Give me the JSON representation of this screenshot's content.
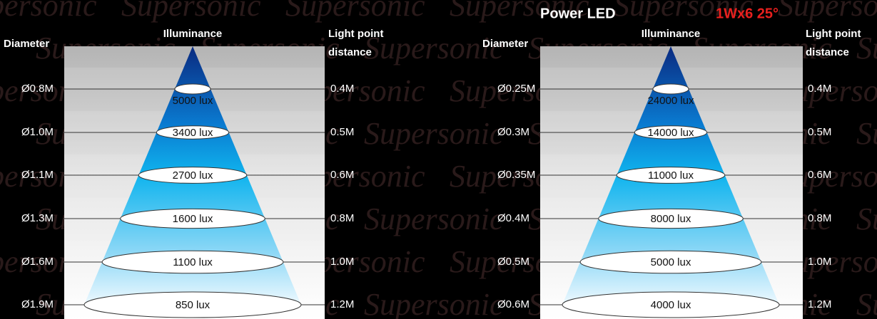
{
  "watermark": "Supersonic",
  "title": "Power LED",
  "spec": "1Wx6  25°",
  "panels": [
    {
      "headers": {
        "diameter": "Diameter",
        "illuminance": "Illuminance",
        "distance_line1": "Light point",
        "distance_line2": "distance"
      },
      "rows": [
        {
          "diameter": "Ø0.8M",
          "illuminance": "5000 lux",
          "distance": "0.4M"
        },
        {
          "diameter": "Ø1.0M",
          "illuminance": "3400 lux",
          "distance": "0.5M"
        },
        {
          "diameter": "Ø1.1M",
          "illuminance": "2700 lux",
          "distance": "0.6M"
        },
        {
          "diameter": "Ø1.3M",
          "illuminance": "1600 lux",
          "distance": "0.8M"
        },
        {
          "diameter": "Ø1.6M",
          "illuminance": "1100 lux",
          "distance": "1.0M"
        },
        {
          "diameter": "Ø1.9M",
          "illuminance": "850 lux",
          "distance": "1.2M"
        }
      ]
    },
    {
      "headers": {
        "diameter": "Diameter",
        "illuminance": "Illuminance",
        "distance_line1": "Light point",
        "distance_line2": "distance"
      },
      "rows": [
        {
          "diameter": "Ø0.25M",
          "illuminance": "24000 lux",
          "distance": "0.4M"
        },
        {
          "diameter": "Ø0.3M",
          "illuminance": "14000 lux",
          "distance": "0.5M"
        },
        {
          "diameter": "Ø0.35M",
          "illuminance": "11000 lux",
          "distance": "0.6M"
        },
        {
          "diameter": "Ø0.4M",
          "illuminance": "8000 lux",
          "distance": "0.8M"
        },
        {
          "diameter": "Ø0.5M",
          "illuminance": "5000 lux",
          "distance": "1.0M"
        },
        {
          "diameter": "Ø0.6M",
          "illuminance": "4000 lux",
          "distance": "1.2M"
        }
      ]
    }
  ]
}
